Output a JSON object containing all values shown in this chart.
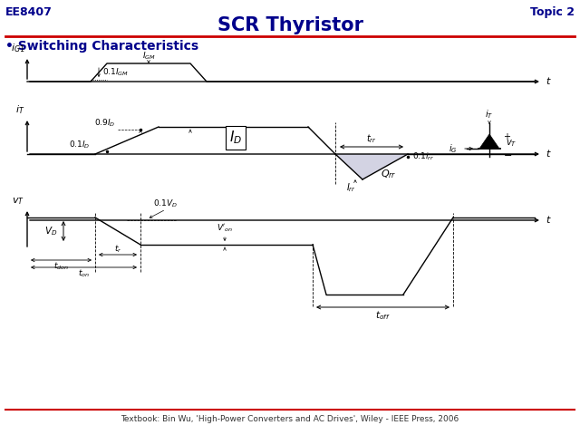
{
  "title": "SCR Thyristor",
  "header_left": "EE8407",
  "header_right": "Topic 2",
  "subtitle": "Switching Characteristics",
  "footer": "Textbook: Bin Wu, 'High-Power Converters and AC Drives', Wiley - IEEE Press, 2006",
  "bg_color": "#ffffff",
  "title_color": "#00008B",
  "header_color": "#00008B",
  "subtitle_color": "#00008B",
  "line_color": "#000000",
  "red_line_color": "#cc0000",
  "fig_width": 6.4,
  "fig_height": 4.8,
  "dpi": 100
}
